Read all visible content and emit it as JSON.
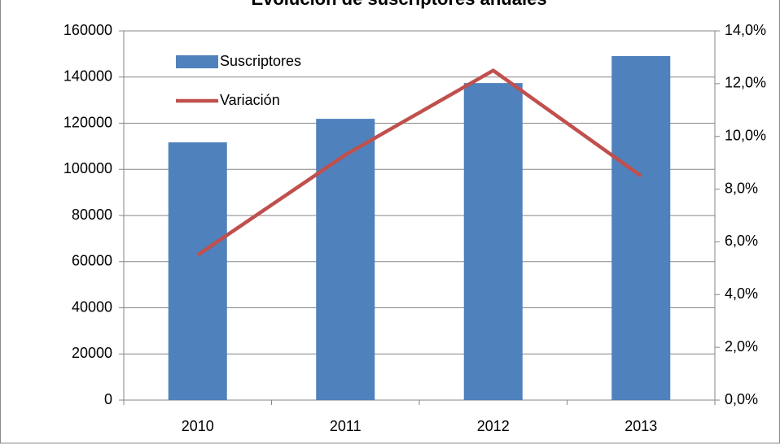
{
  "chart_data": {
    "type": "bar-line",
    "title": "Evolución de suscriptores anuales",
    "categories": [
      "2010",
      "2011",
      "2012",
      "2013"
    ],
    "series": [
      {
        "name": "Suscriptores",
        "type": "bar",
        "color": "#4f81bd",
        "values": [
          111700,
          121900,
          137400,
          149100
        ]
      },
      {
        "name": "Variación",
        "type": "line",
        "axis": "y2",
        "color": "#c0504d",
        "values": [
          5.5,
          9.3,
          12.5,
          8.5
        ]
      }
    ],
    "ylim": [
      0,
      160000
    ],
    "yticks": [
      0,
      20000,
      40000,
      60000,
      80000,
      100000,
      120000,
      140000,
      160000
    ],
    "y2lim": [
      0,
      14
    ],
    "y2ticks": [
      {
        "value": 0,
        "label": "0,0%"
      },
      {
        "value": 2,
        "label": "2,0%"
      },
      {
        "value": 4,
        "label": "4,0%"
      },
      {
        "value": 6,
        "label": "6,0%"
      },
      {
        "value": 8,
        "label": "8,0%"
      },
      {
        "value": 10,
        "label": "10,0%"
      },
      {
        "value": 12,
        "label": "12,0%"
      },
      {
        "value": 14,
        "label": "14,0%"
      }
    ],
    "grid": true,
    "legend": "upper left"
  }
}
